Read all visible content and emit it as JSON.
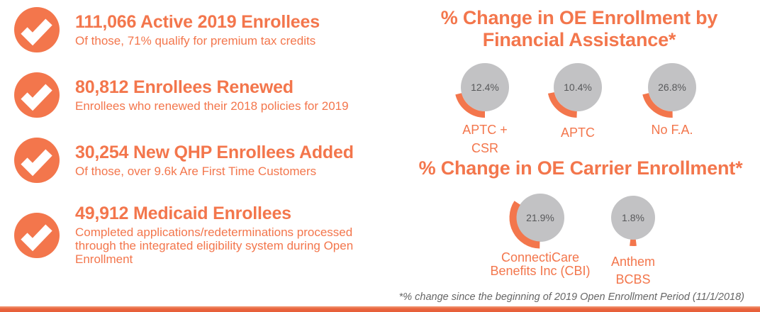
{
  "colors": {
    "accent": "#F3764C",
    "bottom_bar": "#E8633D",
    "donut_gray": "#C2C2C4",
    "donut_value_text": "#58595B",
    "footnote_text": "#666666",
    "check_mark": "#FFFFFF"
  },
  "stats": [
    {
      "icon": "check-icon",
      "title": "111,066 Active 2019 Enrollees",
      "subtitle": "Of those, 71% qualify for premium tax credits"
    },
    {
      "icon": "check-icon",
      "title": "80,812 Enrollees Renewed",
      "subtitle": "Enrollees who renewed their 2018 policies for 2019"
    },
    {
      "icon": "check-icon",
      "title": "30,254 New QHP Enrollees Added",
      "subtitle": "Of those, over 9.6k Are First Time Customers"
    },
    {
      "icon": "check-icon",
      "title": "49,912 Medicaid Enrollees",
      "subtitle": "Completed applications/redeterminations processed through the integrated eligibility system during Open Enrollment"
    }
  ],
  "chart_data": [
    {
      "type": "pie",
      "title": "% Change in OE Enrollment by Financial Assistance*",
      "categories": [
        "APTC + CSR",
        "APTC",
        "No F.A."
      ],
      "values": [
        12.4,
        10.4,
        26.8
      ],
      "unit": "%",
      "legend_position": "below-each-donut",
      "donuts": [
        {
          "label": "APTC + CSR",
          "label_lines": [
            "APTC +",
            "CSR"
          ],
          "value": 12.4,
          "display": "12.4%",
          "arc_start_deg": 166,
          "arc_end_deg": 90
        },
        {
          "label": "APTC",
          "label_lines": [
            "APTC"
          ],
          "value": 10.4,
          "display": "10.4%",
          "arc_start_deg": 168,
          "arc_end_deg": 92
        },
        {
          "label": "No F.A.",
          "label_lines": [
            "No F.A."
          ],
          "value": 26.8,
          "display": "26.8%",
          "arc_start_deg": 166,
          "arc_end_deg": 89
        }
      ]
    },
    {
      "type": "pie",
      "title": "% Change in OE Carrier Enrollment*",
      "categories": [
        "ConnectiCare Benefits Inc (CBI)",
        "Anthem BCBS"
      ],
      "values": [
        21.9,
        1.8
      ],
      "unit": "%",
      "legend_position": "below-each-donut",
      "donuts": [
        {
          "label": "ConnectiCare Benefits Inc (CBI)",
          "label_lines": [
            "ConnectiCare",
            "Benefits Inc (CBI)"
          ],
          "value": 21.9,
          "display": "21.9%",
          "arc_start_deg": 213,
          "arc_end_deg": 91
        },
        {
          "label": "Anthem BCBS",
          "label_lines": [
            "Anthem",
            "BCBS"
          ],
          "value": 1.8,
          "display": "1.8%",
          "arc_start_deg": 97,
          "arc_end_deg": 83
        }
      ]
    }
  ],
  "footnote": "*% change since the beginning of 2019 Open Enrollment Period (11/1/2018)"
}
